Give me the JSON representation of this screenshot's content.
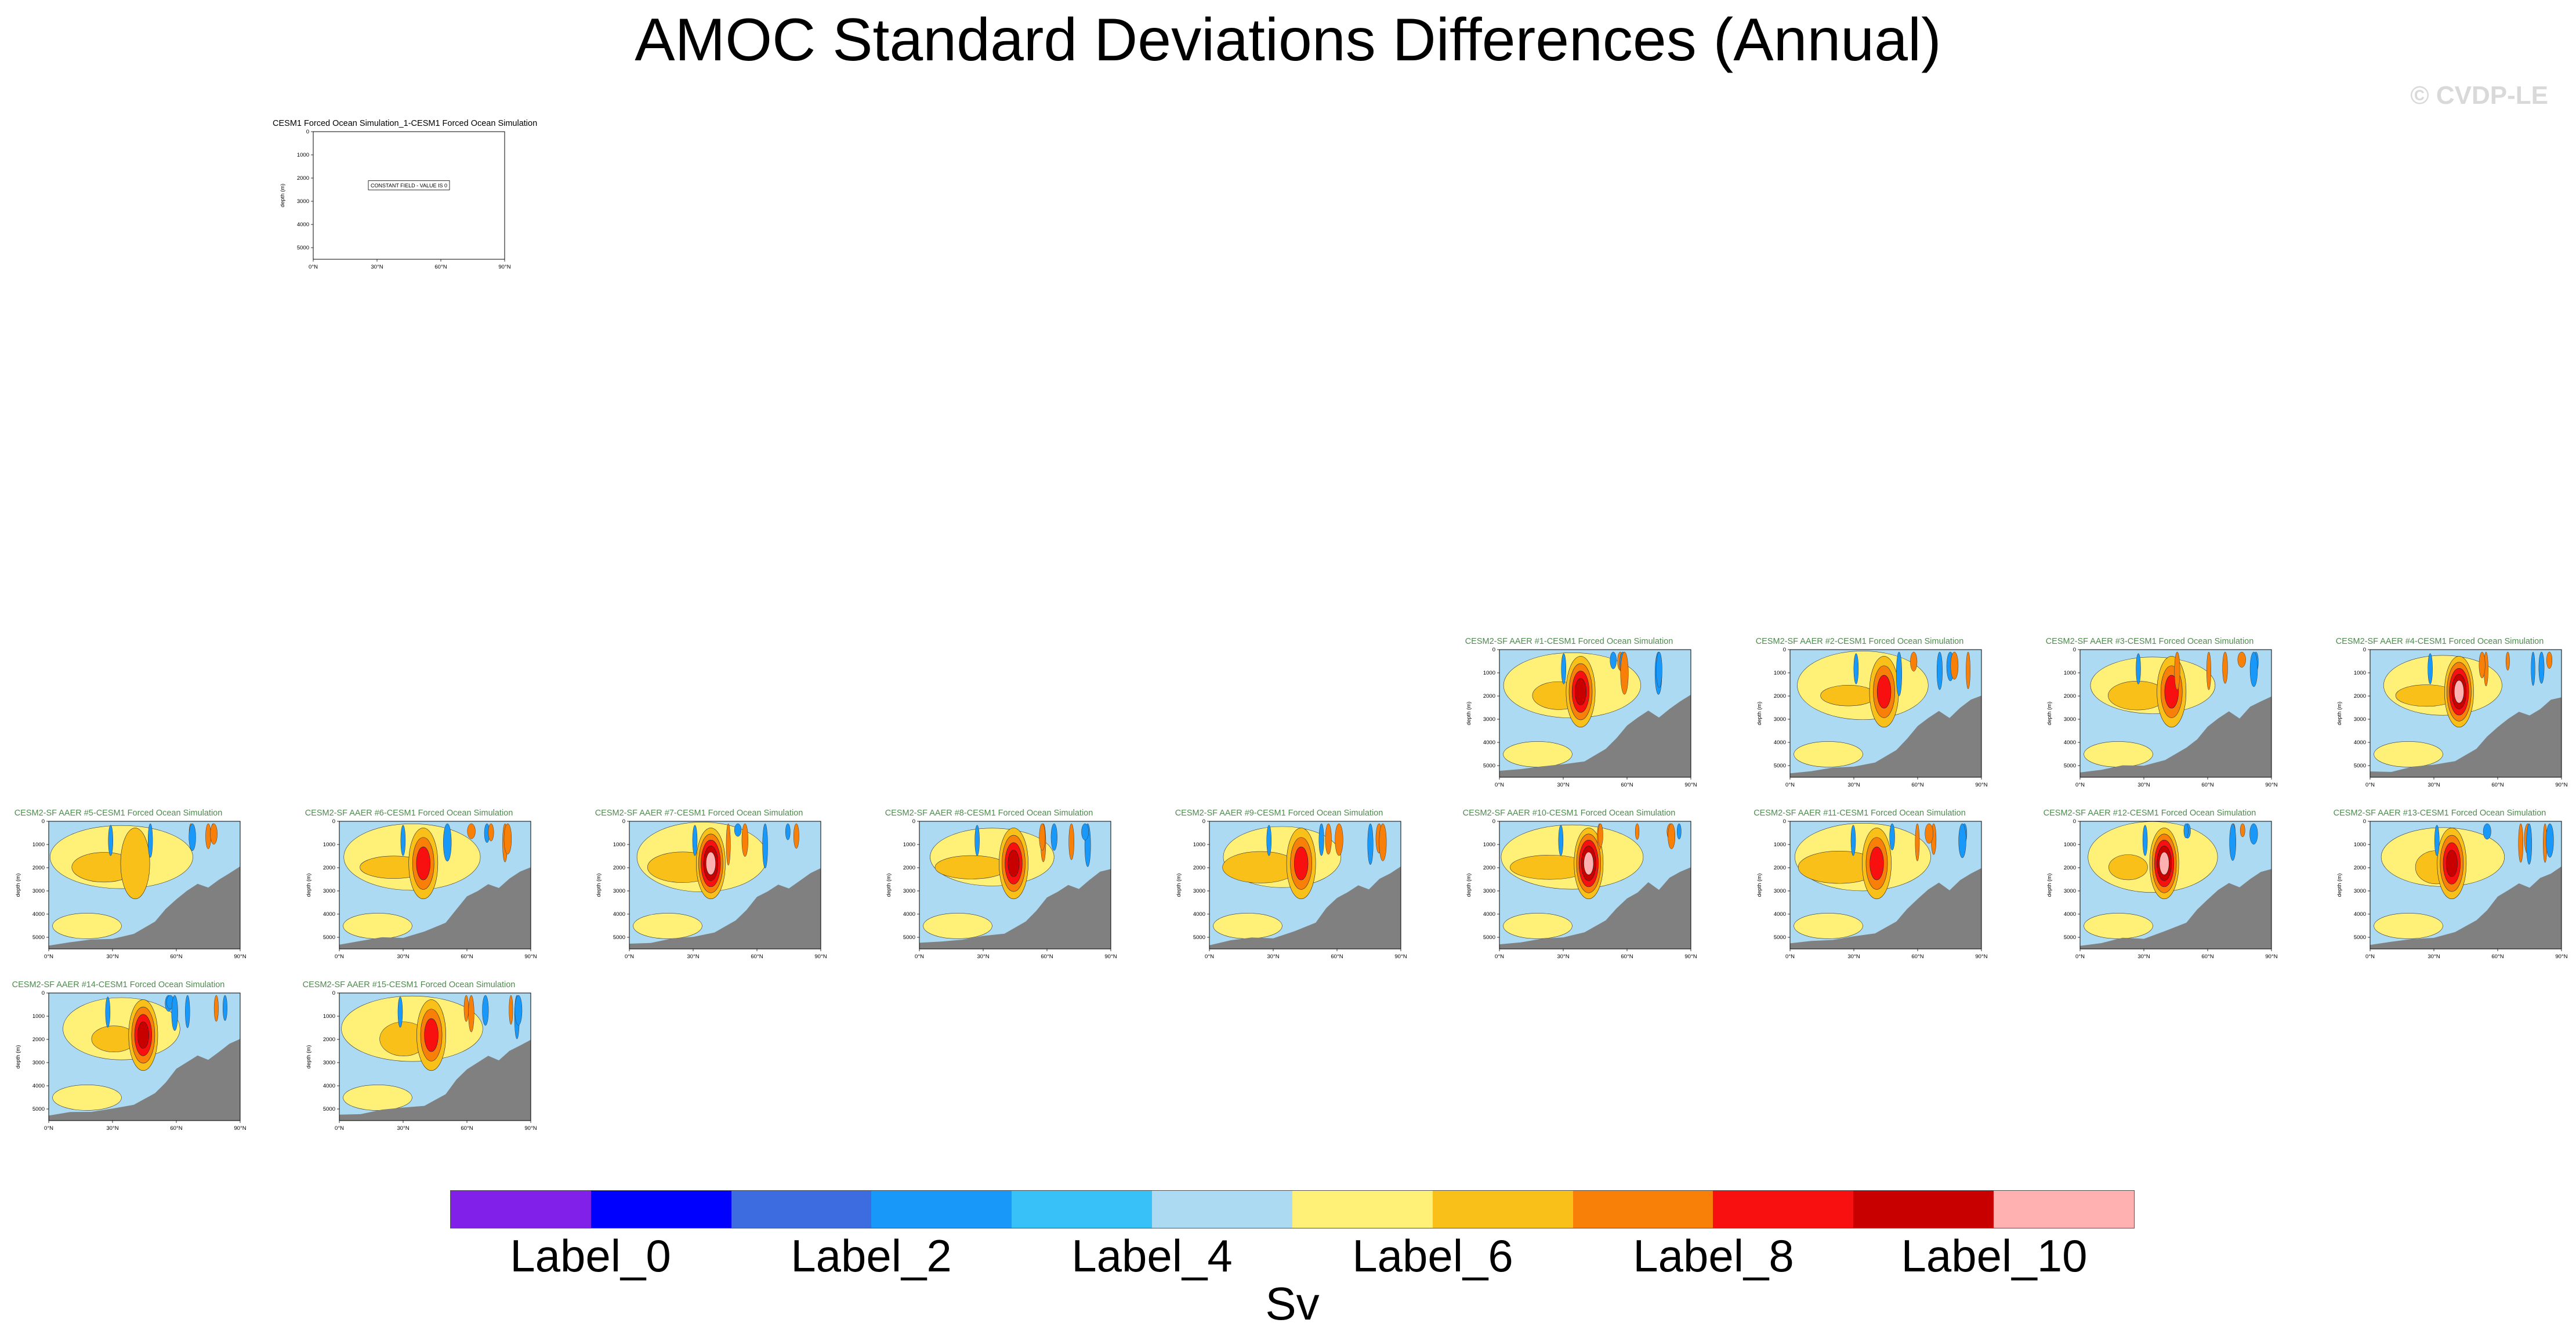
{
  "title": "AMOC Standard Deviations Differences (Annual)",
  "watermark": "© CVDP-LE",
  "colors": {
    "land": "#808080",
    "title_first": "#000000",
    "title_others": "#4e8a4e",
    "levels": [
      "#8020e8",
      "#0000ff",
      "#3c6ce0",
      "#1898f8",
      "#38c0f8",
      "#acdaf2",
      "#fff078",
      "#f8c018",
      "#f88008",
      "#f81010",
      "#c80000",
      "#ffb0b0"
    ]
  },
  "colorbar": {
    "labels": [
      "Label_0",
      "Label_2",
      "Label_4",
      "Label_6",
      "Label_8",
      "Label_10"
    ],
    "units": "Sv"
  },
  "axes": {
    "ylabel": "depth (m)",
    "yticks": [
      "0",
      "1000",
      "2000",
      "3000",
      "4000",
      "5000"
    ],
    "xticks": [
      "0°N",
      "30°N",
      "60°N",
      "90°N"
    ]
  },
  "chart_data": {
    "type": "heatmap",
    "x": "latitude",
    "y": "depth",
    "xlim": [
      0,
      90
    ],
    "ylim": [
      5500,
      0
    ],
    "panels": [
      {
        "title": "CESM1 Forced Ocean Simulation_1-CESM1 Forced Ocean Simulation",
        "constant": true,
        "note": "CONSTANT FIELD - VALUE IS 0"
      },
      {
        "title": "CESM2-SF AAER #1-CESM1 Forced Ocean Simulation",
        "core_level": 10
      },
      {
        "title": "CESM2-SF AAER #2-CESM1 Forced Ocean Simulation",
        "core_level": 9
      },
      {
        "title": "CESM2-SF AAER #3-CESM1 Forced Ocean Simulation",
        "core_level": 9
      },
      {
        "title": "CESM2-SF AAER #4-CESM1 Forced Ocean Simulation",
        "core_level": 11
      },
      {
        "title": "CESM2-SF AAER #5-CESM1 Forced Ocean Simulation",
        "core_level": 7
      },
      {
        "title": "CESM2-SF AAER #6-CESM1 Forced Ocean Simulation",
        "core_level": 9
      },
      {
        "title": "CESM2-SF AAER #7-CESM1 Forced Ocean Simulation",
        "core_level": 11
      },
      {
        "title": "CESM2-SF AAER #8-CESM1 Forced Ocean Simulation",
        "core_level": 10
      },
      {
        "title": "CESM2-SF AAER #9-CESM1 Forced Ocean Simulation",
        "core_level": 9
      },
      {
        "title": "CESM2-SF AAER #10-CESM1 Forced Ocean Simulation",
        "core_level": 11
      },
      {
        "title": "CESM2-SF AAER #11-CESM1 Forced Ocean Simulation",
        "core_level": 9
      },
      {
        "title": "CESM2-SF AAER #12-CESM1 Forced Ocean Simulation",
        "core_level": 11
      },
      {
        "title": "CESM2-SF AAER #13-CESM1 Forced Ocean Simulation",
        "core_level": 10
      },
      {
        "title": "CESM2-SF AAER #14-CESM1 Forced Ocean Simulation",
        "core_level": 10
      },
      {
        "title": "CESM2-SF AAER #15-CESM1 Forced Ocean Simulation",
        "core_level": 9
      }
    ]
  }
}
